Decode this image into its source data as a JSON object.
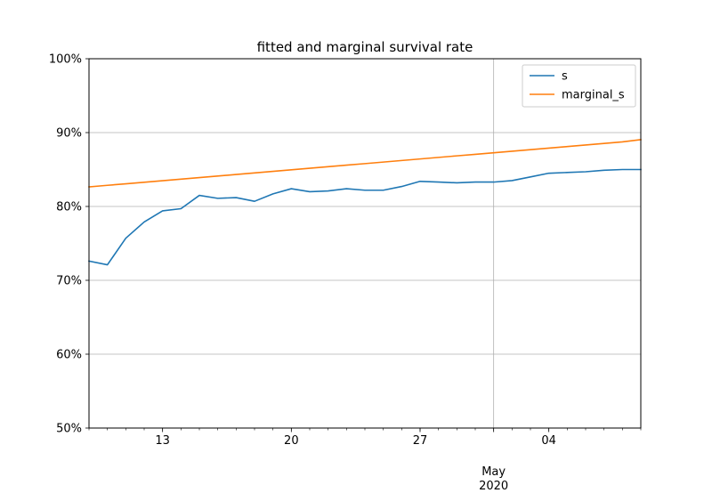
{
  "chart_data": {
    "type": "line",
    "title": "fitted and marginal survival rate",
    "xlabel": "",
    "ylabel": "",
    "x": [
      "2020-04-09",
      "2020-04-10",
      "2020-04-11",
      "2020-04-12",
      "2020-04-13",
      "2020-04-14",
      "2020-04-15",
      "2020-04-16",
      "2020-04-17",
      "2020-04-18",
      "2020-04-19",
      "2020-04-20",
      "2020-04-21",
      "2020-04-22",
      "2020-04-23",
      "2020-04-24",
      "2020-04-25",
      "2020-04-26",
      "2020-04-27",
      "2020-04-28",
      "2020-04-29",
      "2020-04-30",
      "2020-05-01",
      "2020-05-02",
      "2020-05-03",
      "2020-05-04",
      "2020-05-05",
      "2020-05-06",
      "2020-05-07",
      "2020-05-08",
      "2020-05-09"
    ],
    "xlim": [
      "2020-04-09",
      "2020-05-09"
    ],
    "ylim": [
      0.5,
      1.0
    ],
    "yticks": [
      0.5,
      0.6,
      0.7,
      0.8,
      0.9,
      1.0
    ],
    "ytick_labels": [
      "50%",
      "60%",
      "70%",
      "80%",
      "90%",
      "100%"
    ],
    "xticks_major": [
      "2020-04-13",
      "2020-04-20",
      "2020-04-27",
      "2020-05-04"
    ],
    "xtick_labels_major": [
      "13",
      "20",
      "27",
      "04"
    ],
    "xtick_month": {
      "date": "2020-05-01",
      "label": "May",
      "year_label": "2020"
    },
    "grid": true,
    "legend_position": "top-right",
    "series": [
      {
        "name": "s",
        "color": "#1f77b4",
        "values": [
          0.726,
          0.721,
          0.757,
          0.779,
          0.794,
          0.797,
          0.815,
          0.811,
          0.812,
          0.807,
          0.817,
          0.824,
          0.82,
          0.821,
          0.824,
          0.822,
          0.822,
          0.827,
          0.834,
          0.833,
          0.832,
          0.833,
          0.833,
          0.835,
          0.84,
          0.845,
          0.846,
          0.847,
          0.849,
          0.85,
          0.85
        ]
      },
      {
        "name": "marginal_s",
        "color": "#ff7f0e",
        "values": [
          0.8265,
          0.8286,
          0.8307,
          0.8328,
          0.8349,
          0.837,
          0.8391,
          0.8412,
          0.8433,
          0.8454,
          0.8475,
          0.8496,
          0.8517,
          0.8538,
          0.8559,
          0.858,
          0.8601,
          0.8622,
          0.8643,
          0.8664,
          0.8685,
          0.8706,
          0.8727,
          0.8748,
          0.8769,
          0.879,
          0.8811,
          0.8832,
          0.8853,
          0.8874,
          0.8905
        ]
      }
    ]
  }
}
